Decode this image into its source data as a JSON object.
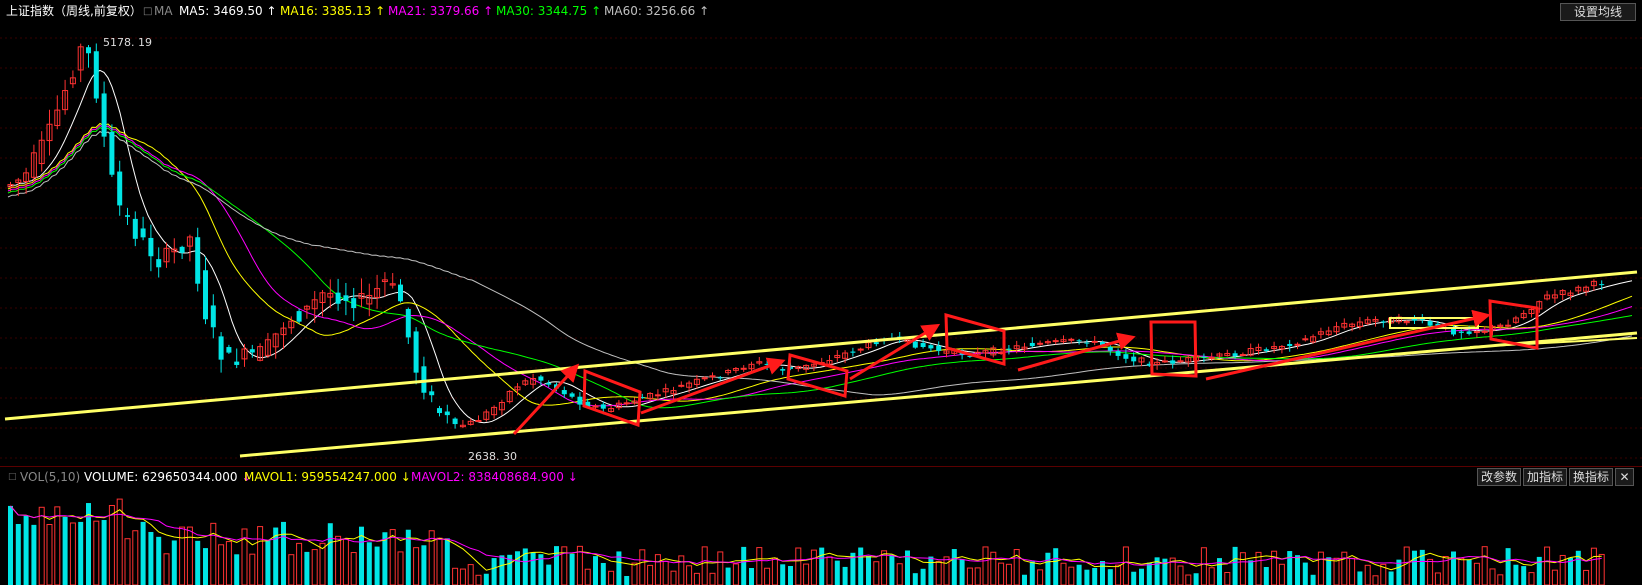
{
  "header": {
    "title": "上证指数（周线,前复权）",
    "ma_checkbox": "MA",
    "ma": [
      {
        "label": "MA5: 3469.50",
        "arrow": "↑",
        "color": "#ffffff"
      },
      {
        "label": "MA16: 3385.13",
        "arrow": "↑",
        "color": "#ffff00"
      },
      {
        "label": "MA21: 3379.66",
        "arrow": "↑",
        "color": "#ff00ff"
      },
      {
        "label": "MA30: 3344.75",
        "arrow": "↑",
        "color": "#00ff00"
      },
      {
        "label": "MA60: 3256.66",
        "arrow": "↑",
        "color": "#c0c0c0"
      }
    ],
    "settings_button": "设置均线"
  },
  "price_annotations": {
    "high": "5178. 19",
    "low": "2638. 30"
  },
  "volume_header": {
    "label": "VOL(5,10)",
    "volume": "VOLUME: 629650344.000",
    "volume_arrow": "↓",
    "mavol1": "MAVOL1: 959554247.000",
    "mavol1_arrow": "↓",
    "mavol2": "MAVOL2: 838408684.900",
    "mavol2_arrow": "↓",
    "buttons": [
      "改参数",
      "加指标",
      "换指标"
    ],
    "close": "✕"
  },
  "colors": {
    "up": "#ff3232",
    "down": "#00e5e5",
    "ma5": "#ffffff",
    "ma16": "#ffff00",
    "ma21": "#ff00ff",
    "ma30": "#00ff00",
    "ma60": "#c0c0c0",
    "channel": "#ffff66",
    "annotation": "#ff1a1a"
  }
}
